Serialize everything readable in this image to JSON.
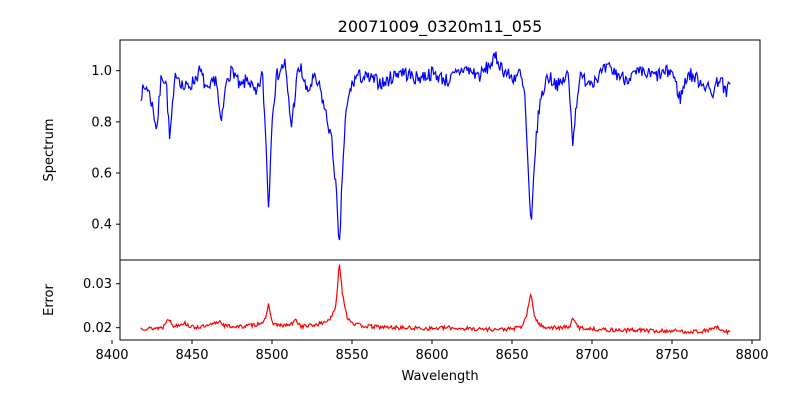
{
  "chart_data": {
    "type": "line",
    "title": "20071009_0320m11_055",
    "xlabel": "Wavelength",
    "xlim": [
      8405,
      8805
    ],
    "xticks": [
      8400,
      8450,
      8500,
      8550,
      8600,
      8650,
      8700,
      8750,
      8800
    ],
    "x_range_data": [
      8418,
      8787
    ],
    "panels": [
      {
        "name": "spectrum",
        "ylabel": "Spectrum",
        "color": "#0000ff",
        "ylim": [
          0.26,
          1.12
        ],
        "yticks": [
          0.4,
          0.6,
          0.8,
          1.0
        ],
        "ytick_labels": [
          "0.4",
          "0.6",
          "0.8",
          "1.0"
        ],
        "series": [
          {
            "x": [
              8418,
              8422,
              8425,
              8428,
              8431,
              8434,
              8436,
              8440,
              8445,
              8450,
              8455,
              8460,
              8465,
              8468,
              8472,
              8476,
              8480,
              8485,
              8490,
              8494,
              8496,
              8498,
              8500,
              8503,
              8508,
              8512,
              8516,
              8518,
              8522,
              8526,
              8530,
              8534,
              8537,
              8540,
              8542,
              8544,
              8546,
              8549,
              8553,
              8560,
              8570,
              8580,
              8590,
              8600,
              8610,
              8620,
              8630,
              8640,
              8645,
              8650,
              8655,
              8658,
              8661,
              8662,
              8664,
              8667,
              8672,
              8680,
              8685,
              8688,
              8692,
              8700,
              8710,
              8720,
              8730,
              8740,
              8750,
              8755,
              8760,
              8770,
              8775,
              8780,
              8784,
              8787
            ],
            "y": [
              0.91,
              0.94,
              0.87,
              0.77,
              0.99,
              0.95,
              0.73,
              1.0,
              0.93,
              0.95,
              1.0,
              0.91,
              0.98,
              0.78,
              0.98,
              1.0,
              0.93,
              0.97,
              0.9,
              0.99,
              0.75,
              0.45,
              0.83,
              0.98,
              1.03,
              0.78,
              0.99,
              1.01,
              0.91,
              0.97,
              0.93,
              0.82,
              0.74,
              0.55,
              0.28,
              0.6,
              0.82,
              0.93,
              0.98,
              0.97,
              0.95,
              1.0,
              0.97,
              0.99,
              0.96,
              1.01,
              0.98,
              1.05,
              1.0,
              0.97,
              0.99,
              0.9,
              0.48,
              0.37,
              0.65,
              0.86,
              0.98,
              0.94,
              0.99,
              0.73,
              0.97,
              0.96,
              1.01,
              0.97,
              0.99,
              0.98,
              1.0,
              0.89,
              0.99,
              0.95,
              0.91,
              0.98,
              0.9,
              0.99
            ]
          }
        ]
      },
      {
        "name": "error",
        "ylabel": "Error",
        "color": "#ff0000",
        "ylim": [
          0.0172,
          0.0354
        ],
        "yticks": [
          0.02,
          0.03
        ],
        "ytick_labels": [
          "0.02",
          "0.03"
        ],
        "series": [
          {
            "x": [
              8418,
              8425,
              8432,
              8435,
              8438,
              8445,
              8450,
              8460,
              8468,
              8470,
              8480,
              8490,
              8496,
              8498,
              8500,
              8505,
              8512,
              8515,
              8518,
              8525,
              8532,
              8537,
              8540,
              8542,
              8544,
              8547,
              8552,
              8560,
              8570,
              8580,
              8590,
              8600,
              8610,
              8620,
              8630,
              8640,
              8650,
              8656,
              8659,
              8661,
              8662,
              8664,
              8667,
              8672,
              8680,
              8686,
              8688,
              8692,
              8700,
              8710,
              8720,
              8730,
              8740,
              8750,
              8760,
              8770,
              8778,
              8782,
              8787
            ],
            "y": [
              0.0199,
              0.0198,
              0.0201,
              0.0224,
              0.0203,
              0.0211,
              0.0201,
              0.0203,
              0.0216,
              0.0204,
              0.0202,
              0.0207,
              0.0217,
              0.0256,
              0.0211,
              0.0204,
              0.0207,
              0.0218,
              0.0203,
              0.0205,
              0.0211,
              0.0222,
              0.0248,
              0.035,
              0.028,
              0.0223,
              0.0207,
              0.0203,
              0.0201,
              0.02,
              0.0199,
              0.0198,
              0.02,
              0.0198,
              0.0197,
              0.0196,
              0.0197,
              0.0202,
              0.0226,
              0.0263,
              0.0276,
              0.0228,
              0.0206,
              0.0201,
              0.0199,
              0.0203,
              0.0219,
              0.02,
              0.0197,
              0.0195,
              0.0194,
              0.0195,
              0.0192,
              0.0193,
              0.0191,
              0.0192,
              0.0201,
              0.019,
              0.0191
            ]
          }
        ]
      }
    ]
  }
}
